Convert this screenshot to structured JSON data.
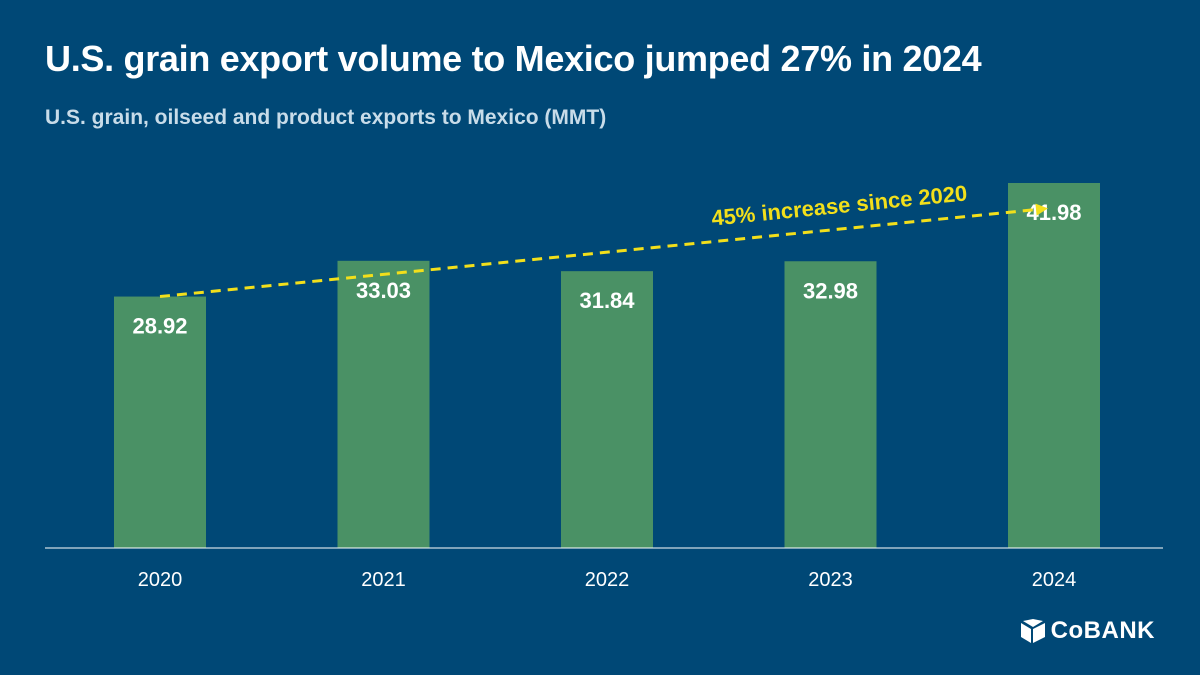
{
  "header": {
    "title": "U.S. grain export volume to Mexico jumped 27% in 2024",
    "subtitle": "U.S. grain, oilseed and product exports to Mexico (MMT)"
  },
  "annotation": {
    "text": "45% increase since 2020"
  },
  "brand": {
    "name": "COBANK",
    "display": "CoBANK"
  },
  "colors": {
    "background": "#004876",
    "bar": "#4a9165",
    "annotation": "#f2df1b",
    "axis": "#ffffff",
    "label": "#ffffff"
  },
  "chart_data": {
    "type": "bar",
    "title": "U.S. grain export volume to Mexico jumped 27% in 2024",
    "subtitle": "U.S. grain, oilseed and product exports to Mexico (MMT)",
    "categories": [
      "2020",
      "2021",
      "2022",
      "2023",
      "2024"
    ],
    "values": [
      28.92,
      33.03,
      31.84,
      32.98,
      41.98
    ],
    "value_labels": [
      "28.92",
      "33.03",
      "31.84",
      "32.98",
      "41.98"
    ],
    "xlabel": "",
    "ylabel": "",
    "ylim": [
      0,
      42
    ],
    "grid": false,
    "legend": "none",
    "annotations": [
      {
        "text": "45% increase since 2020",
        "from_category": "2020",
        "to_category": "2024",
        "style": "dashed-arrow"
      }
    ]
  }
}
